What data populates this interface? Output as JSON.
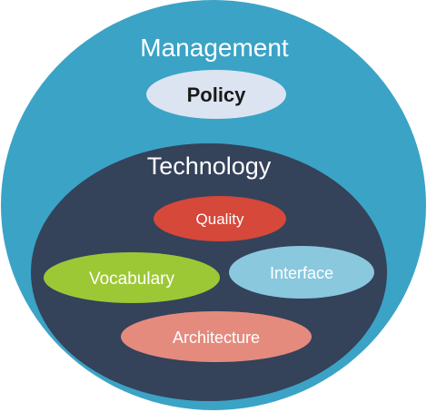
{
  "outer": {
    "label": "Management",
    "color": "#3ba3c6",
    "label_color": "#ffffff"
  },
  "policy": {
    "label": "Policy",
    "color": "#dce4f1",
    "label_color": "#1a1a1a"
  },
  "inner": {
    "label": "Technology",
    "color": "#34425a",
    "label_color": "#ffffff"
  },
  "items": [
    {
      "key": "quality",
      "label": "Quality",
      "color": "#d6483a",
      "label_color": "#ffffff"
    },
    {
      "key": "vocabulary",
      "label": "Vocabulary",
      "color": "#9dc836",
      "label_color": "#ffffff"
    },
    {
      "key": "interface",
      "label": "Interface",
      "color": "#8ac8de",
      "label_color": "#ffffff"
    },
    {
      "key": "architecture",
      "label": "Architecture",
      "color": "#e48b7e",
      "label_color": "#ffffff"
    }
  ]
}
